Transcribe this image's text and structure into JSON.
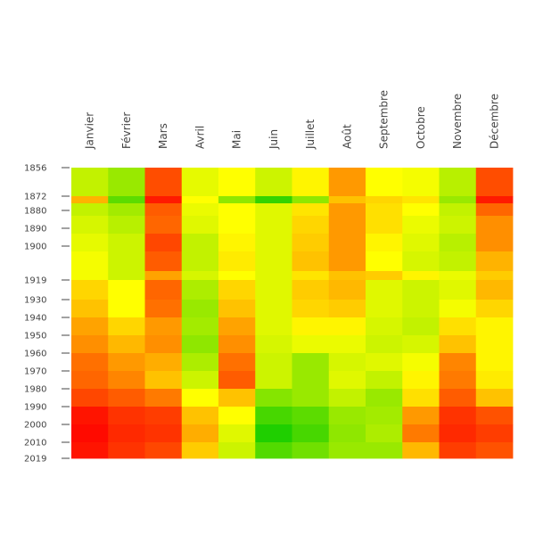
{
  "chart_data": {
    "type": "heatmap",
    "months": [
      "Janvier",
      "Février",
      "Mars",
      "Avril",
      "Mai",
      "Juin",
      "Juillet",
      "Août",
      "Septembre",
      "Octobre",
      "Novembre",
      "Décembre"
    ],
    "y_ticks": [
      1856,
      1872,
      1880,
      1890,
      1900,
      1919,
      1930,
      1940,
      1950,
      1960,
      1970,
      1980,
      1990,
      2000,
      2010,
      2019
    ],
    "y_range": [
      1856,
      2019
    ],
    "rows": [
      {
        "from": 1856,
        "to": 1872,
        "values": [
          0.38,
          0.3,
          0.85,
          0.45,
          0.5,
          0.4,
          0.52,
          0.7,
          0.5,
          0.48,
          0.36,
          0.85
        ]
      },
      {
        "from": 1872,
        "to": 1876,
        "values": [
          0.65,
          0.18,
          0.95,
          0.5,
          0.28,
          0.1,
          0.28,
          0.62,
          0.58,
          0.55,
          0.3,
          0.95
        ]
      },
      {
        "from": 1876,
        "to": 1883,
        "values": [
          0.38,
          0.32,
          0.82,
          0.46,
          0.5,
          0.44,
          0.55,
          0.7,
          0.56,
          0.5,
          0.38,
          0.8
        ]
      },
      {
        "from": 1883,
        "to": 1893,
        "values": [
          0.42,
          0.36,
          0.8,
          0.44,
          0.5,
          0.44,
          0.58,
          0.7,
          0.56,
          0.46,
          0.4,
          0.72
        ]
      },
      {
        "from": 1893,
        "to": 1903,
        "values": [
          0.45,
          0.4,
          0.86,
          0.38,
          0.52,
          0.44,
          0.6,
          0.7,
          0.52,
          0.44,
          0.36,
          0.72
        ]
      },
      {
        "from": 1903,
        "to": 1914,
        "values": [
          0.48,
          0.4,
          0.82,
          0.38,
          0.54,
          0.44,
          0.62,
          0.7,
          0.5,
          0.42,
          0.38,
          0.65
        ]
      },
      {
        "from": 1914,
        "to": 1919,
        "values": [
          0.48,
          0.4,
          0.68,
          0.42,
          0.5,
          0.44,
          0.55,
          0.62,
          0.6,
          0.52,
          0.46,
          0.6
        ]
      },
      {
        "from": 1919,
        "to": 1930,
        "values": [
          0.58,
          0.5,
          0.8,
          0.34,
          0.58,
          0.44,
          0.6,
          0.64,
          0.44,
          0.4,
          0.44,
          0.64
        ]
      },
      {
        "from": 1930,
        "to": 1940,
        "values": [
          0.62,
          0.5,
          0.78,
          0.3,
          0.62,
          0.44,
          0.58,
          0.6,
          0.44,
          0.4,
          0.48,
          0.58
        ]
      },
      {
        "from": 1940,
        "to": 1950,
        "values": [
          0.68,
          0.58,
          0.7,
          0.32,
          0.68,
          0.44,
          0.52,
          0.52,
          0.42,
          0.38,
          0.56,
          0.52
        ]
      },
      {
        "from": 1950,
        "to": 1960,
        "values": [
          0.72,
          0.64,
          0.72,
          0.28,
          0.72,
          0.42,
          0.46,
          0.46,
          0.4,
          0.42,
          0.62,
          0.52
        ]
      },
      {
        "from": 1960,
        "to": 1970,
        "values": [
          0.78,
          0.7,
          0.66,
          0.34,
          0.78,
          0.4,
          0.3,
          0.42,
          0.44,
          0.48,
          0.74,
          0.52
        ]
      },
      {
        "from": 1970,
        "to": 1980,
        "values": [
          0.8,
          0.74,
          0.62,
          0.4,
          0.82,
          0.4,
          0.3,
          0.44,
          0.38,
          0.52,
          0.76,
          0.54
        ]
      },
      {
        "from": 1980,
        "to": 1990,
        "values": [
          0.86,
          0.82,
          0.76,
          0.5,
          0.62,
          0.26,
          0.3,
          0.38,
          0.3,
          0.56,
          0.82,
          0.62
        ]
      },
      {
        "from": 1990,
        "to": 2000,
        "values": [
          0.96,
          0.9,
          0.88,
          0.62,
          0.5,
          0.14,
          0.18,
          0.3,
          0.32,
          0.7,
          0.9,
          0.84
        ]
      },
      {
        "from": 2000,
        "to": 2010,
        "values": [
          0.98,
          0.92,
          0.9,
          0.66,
          0.44,
          0.06,
          0.14,
          0.28,
          0.34,
          0.76,
          0.92,
          0.88
        ]
      },
      {
        "from": 2010,
        "to": 2019,
        "values": [
          0.96,
          0.9,
          0.86,
          0.6,
          0.4,
          0.16,
          0.22,
          0.3,
          0.3,
          0.64,
          0.88,
          0.84
        ]
      }
    ],
    "colorscale": [
      "#00c800",
      "#ffff00",
      "#ff0000"
    ],
    "colorscale_range": [
      0,
      1
    ],
    "colorbar": false,
    "grid": false,
    "legend": "none"
  }
}
